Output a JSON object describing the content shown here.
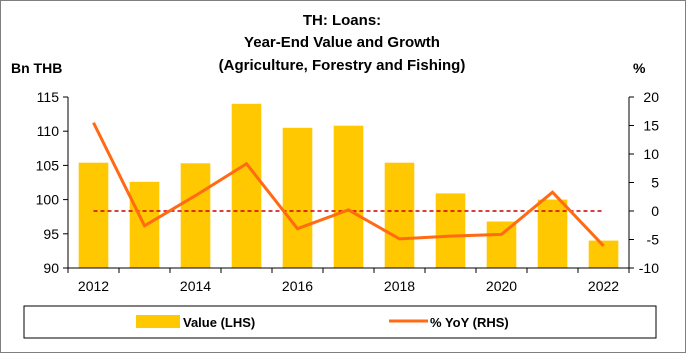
{
  "chart_data": {
    "type": "bar+line",
    "title_lines": [
      "TH: Loans:",
      "Year-End Value and Growth",
      "(Agriculture, Forestry and Fishing)"
    ],
    "ylabel_left": "Bn THB",
    "ylabel_right": "%",
    "categories": [
      "2012",
      "2013",
      "2014",
      "2015",
      "2016",
      "2017",
      "2018",
      "2019",
      "2020",
      "2021",
      "2022"
    ],
    "x_tick_labels": [
      "2012",
      "2014",
      "2016",
      "2018",
      "2020",
      "2022"
    ],
    "left_axis": {
      "min": 90,
      "max": 115,
      "step": 5,
      "ticks": [
        "90",
        "95",
        "100",
        "105",
        "110",
        "115"
      ]
    },
    "right_axis": {
      "min": -10,
      "max": 20,
      "step": 5,
      "ticks": [
        "-10",
        "-5",
        "0",
        "5",
        "10",
        "15",
        "20"
      ]
    },
    "series": [
      {
        "name": "Value (LHS)",
        "type": "bar",
        "axis": "left",
        "color": "#FFC800",
        "values": [
          105.4,
          102.6,
          105.3,
          114.0,
          110.5,
          110.8,
          105.4,
          100.9,
          96.8,
          100.0,
          94.0
        ]
      },
      {
        "name": "% YoY (RHS)",
        "type": "line",
        "axis": "right",
        "color": "#FF6A13",
        "values": [
          15.5,
          -2.6,
          2.7,
          8.3,
          -3.1,
          0.2,
          -4.9,
          -4.4,
          -4.1,
          3.3,
          -6.1
        ]
      }
    ],
    "reference_line": {
      "axis": "right",
      "value": 0,
      "color": "#CC0000",
      "style": "dashed"
    },
    "legend": {
      "placement": "bottom"
    },
    "grid": false
  }
}
